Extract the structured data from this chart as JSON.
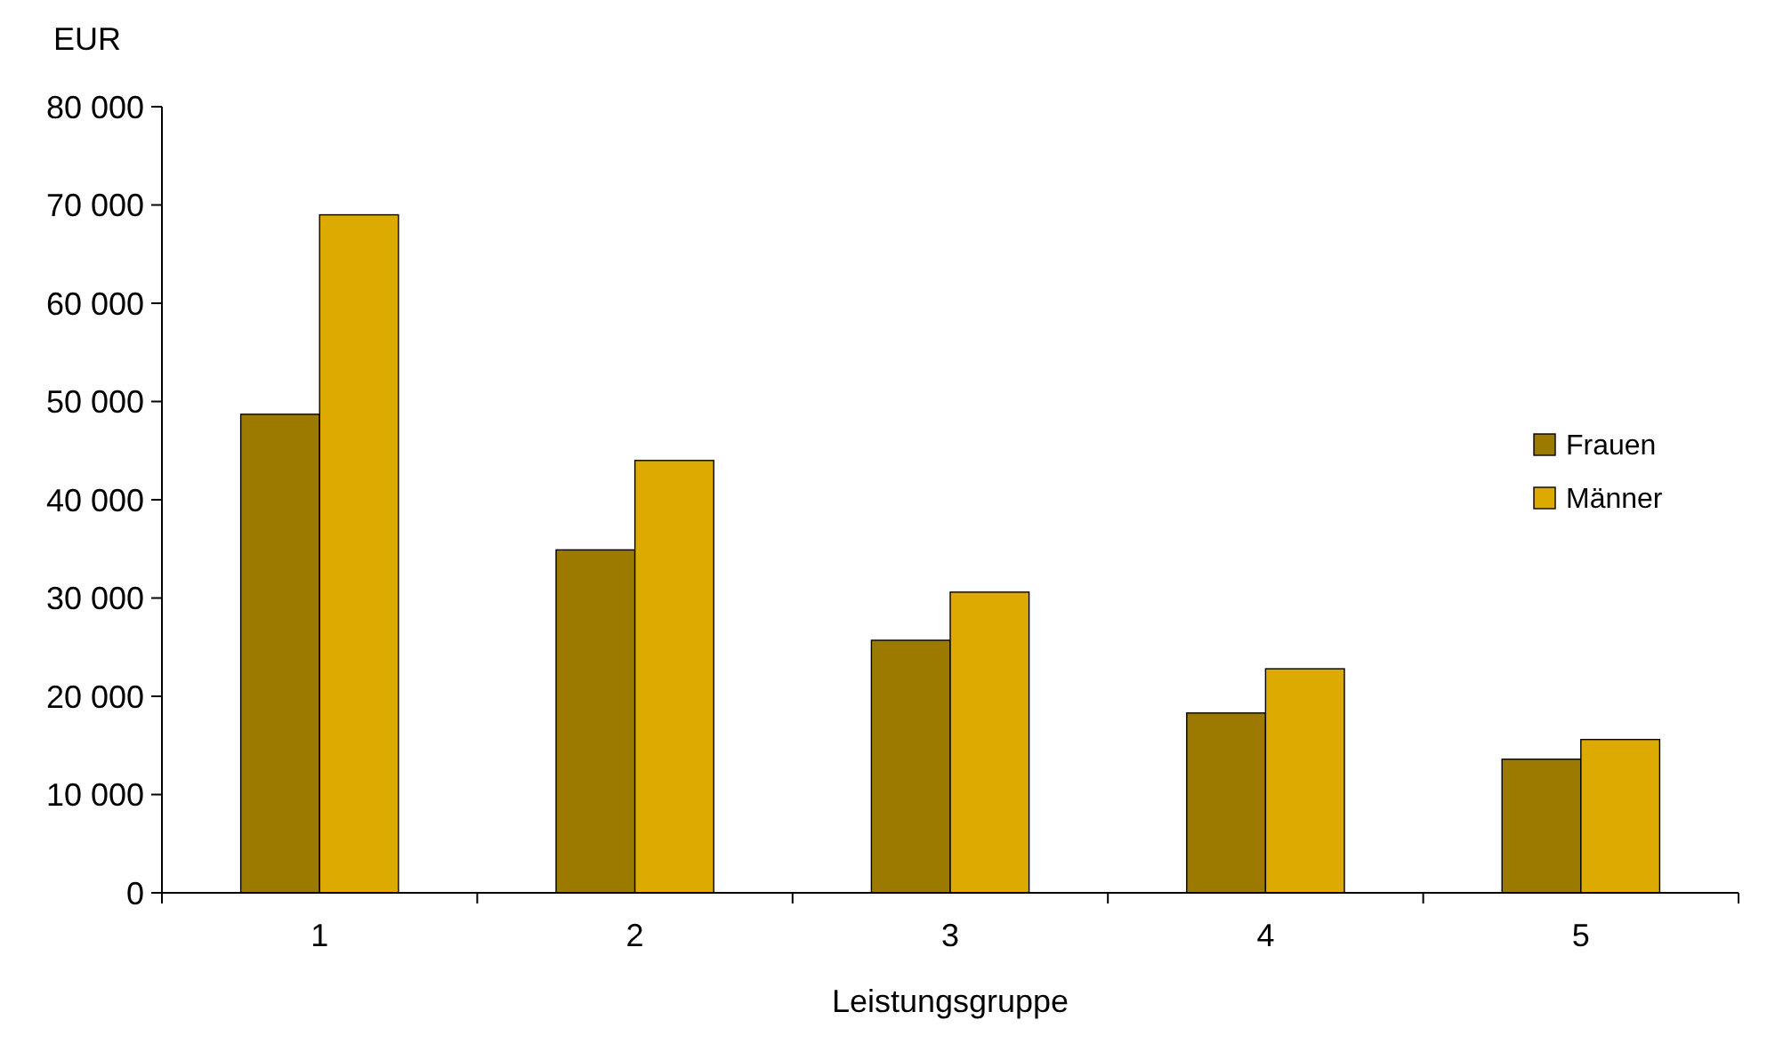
{
  "chart_data": {
    "type": "bar",
    "ylabel": "EUR",
    "xlabel": "Leistungsgruppe",
    "categories": [
      "1",
      "2",
      "3",
      "4",
      "5"
    ],
    "series": [
      {
        "name": "Frauen",
        "color": "#9c7a00",
        "values": [
          48700,
          34900,
          25700,
          18300,
          13600
        ]
      },
      {
        "name": "Männer",
        "color": "#dcaa00",
        "values": [
          69000,
          44000,
          30600,
          22800,
          15600
        ]
      }
    ],
    "ylim": [
      0,
      80000
    ],
    "yticks": [
      {
        "value": 0,
        "label": "0"
      },
      {
        "value": 10000,
        "label": "10 000"
      },
      {
        "value": 20000,
        "label": "20 000"
      },
      {
        "value": 30000,
        "label": "30 000"
      },
      {
        "value": 40000,
        "label": "40 000"
      },
      {
        "value": 50000,
        "label": "50 000"
      },
      {
        "value": 60000,
        "label": "60 000"
      },
      {
        "value": 70000,
        "label": "70 000"
      },
      {
        "value": 80000,
        "label": "80 000"
      }
    ],
    "grid": false,
    "legend": "right"
  }
}
